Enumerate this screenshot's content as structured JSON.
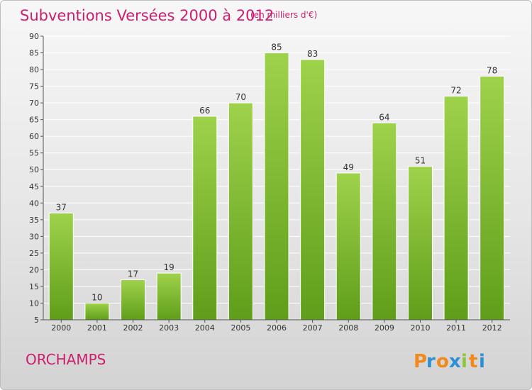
{
  "title": "Subventions Versées 2000 à 2012",
  "unit_note": "(en milliers d'€)",
  "commune": "ORCHAMPS",
  "logo_text": "Proxiti",
  "colors": {
    "title": "#cc1e6e",
    "bar_top": "#9fd24b",
    "bar_bottom": "#5f9e1a",
    "axis": "#555555",
    "grid": "#ffffff"
  },
  "chart_data": {
    "type": "bar",
    "categories": [
      "2000",
      "2001",
      "2002",
      "2003",
      "2004",
      "2005",
      "2006",
      "2007",
      "2008",
      "2009",
      "2010",
      "2011",
      "2012"
    ],
    "values": [
      37,
      10,
      17,
      19,
      66,
      70,
      85,
      83,
      49,
      64,
      51,
      72,
      78
    ],
    "title": "Subventions Versées 2000 à 2012",
    "subtitle": "(en milliers d'€)",
    "ylim": [
      5,
      90
    ],
    "yticks": [
      5,
      10,
      15,
      20,
      25,
      30,
      35,
      40,
      45,
      50,
      55,
      60,
      65,
      70,
      75,
      80,
      85,
      90
    ],
    "grid": true,
    "data_labels": true
  }
}
